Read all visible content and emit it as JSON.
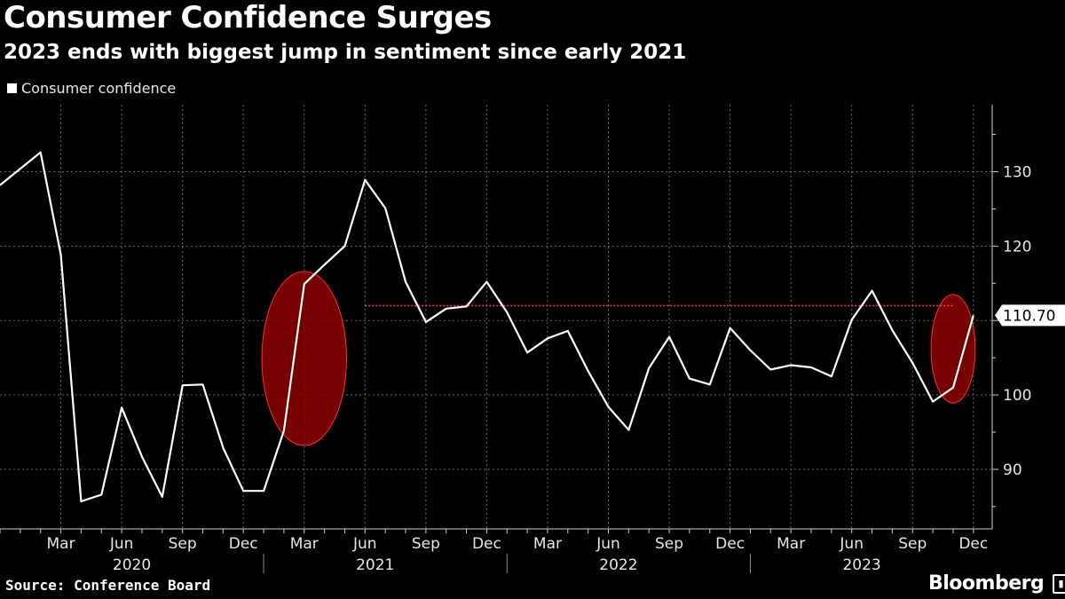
{
  "title": "Consumer Confidence Surges",
  "subtitle": "2023 ends with biggest jump in sentiment since early 2021",
  "legend_label": "Consumer confidence",
  "source": "Source: Conference Board",
  "brand": "Bloomberg",
  "brand_icon": "bloomberg-terminal-icon",
  "colors": {
    "background": "#000000",
    "line": "#ffffff",
    "grid": "#6a6a6a",
    "highlight_fill": "#8b0000",
    "highlight_edge": "#ff3030",
    "reference_line": "#ff4040"
  },
  "chart_data": {
    "type": "line",
    "title": "Consumer Confidence Surges",
    "subtitle": "2023 ends with biggest jump in sentiment since early 2021",
    "xlabel": "",
    "ylabel": "",
    "ylim": [
      82,
      139
    ],
    "yticks": [
      90,
      100,
      110,
      120,
      130
    ],
    "grid": true,
    "legend_position": "top-left",
    "x_range": [
      "2019-12",
      "2024-01"
    ],
    "x_tick_labels": [
      {
        "month": "2020-03",
        "label": "Mar"
      },
      {
        "month": "2020-06",
        "label": "Jun"
      },
      {
        "month": "2020-09",
        "label": "Sep"
      },
      {
        "month": "2020-12",
        "label": "Dec"
      },
      {
        "month": "2021-03",
        "label": "Mar"
      },
      {
        "month": "2021-06",
        "label": "Jun"
      },
      {
        "month": "2021-09",
        "label": "Sep"
      },
      {
        "month": "2021-12",
        "label": "Dec"
      },
      {
        "month": "2022-03",
        "label": "Mar"
      },
      {
        "month": "2022-06",
        "label": "Jun"
      },
      {
        "month": "2022-09",
        "label": "Sep"
      },
      {
        "month": "2022-12",
        "label": "Dec"
      },
      {
        "month": "2023-03",
        "label": "Mar"
      },
      {
        "month": "2023-06",
        "label": "Jun"
      },
      {
        "month": "2023-09",
        "label": "Sep"
      },
      {
        "month": "2023-12",
        "label": "Dec"
      }
    ],
    "year_labels": [
      "2020",
      "2021",
      "2022",
      "2023"
    ],
    "series": [
      {
        "name": "Consumer confidence",
        "x": [
          "2019-12",
          "2020-01",
          "2020-02",
          "2020-03",
          "2020-04",
          "2020-05",
          "2020-06",
          "2020-07",
          "2020-08",
          "2020-09",
          "2020-10",
          "2020-11",
          "2020-12",
          "2021-01",
          "2021-02",
          "2021-03",
          "2021-04",
          "2021-05",
          "2021-06",
          "2021-07",
          "2021-08",
          "2021-09",
          "2021-10",
          "2021-11",
          "2021-12",
          "2022-01",
          "2022-02",
          "2022-03",
          "2022-04",
          "2022-05",
          "2022-06",
          "2022-07",
          "2022-08",
          "2022-09",
          "2022-10",
          "2022-11",
          "2022-12",
          "2023-01",
          "2023-02",
          "2023-03",
          "2023-04",
          "2023-05",
          "2023-06",
          "2023-07",
          "2023-08",
          "2023-09",
          "2023-10",
          "2023-11",
          "2023-12"
        ],
        "values": [
          128.2,
          130.4,
          132.6,
          118.8,
          85.7,
          86.6,
          98.3,
          91.7,
          86.3,
          101.3,
          101.4,
          92.9,
          87.1,
          87.1,
          95.2,
          114.9,
          117.5,
          120.0,
          128.9,
          125.1,
          115.2,
          109.8,
          111.6,
          111.9,
          115.2,
          111.1,
          105.7,
          107.6,
          108.6,
          103.2,
          98.4,
          95.3,
          103.6,
          107.8,
          102.2,
          101.4,
          109.0,
          106.0,
          103.4,
          104.0,
          103.7,
          102.5,
          110.1,
          114.0,
          108.7,
          104.3,
          99.1,
          101.0,
          110.7
        ]
      }
    ],
    "last_value_label": "110.70",
    "reference_line": {
      "value": 112,
      "from": "2021-06",
      "to": "2023-11"
    },
    "highlights": [
      {
        "x_from": "2021-01",
        "x_to": "2021-05",
        "y_from": 93.2,
        "y_to": 116.6
      },
      {
        "x_from": "2023-10",
        "x_to": "2023-12",
        "y_from": 98.9,
        "y_to": 113.5
      }
    ]
  }
}
